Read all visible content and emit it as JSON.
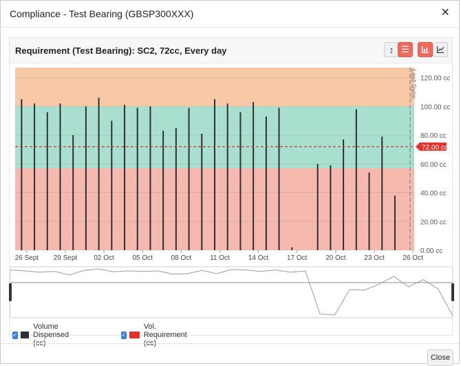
{
  "modal": {
    "title": "Compliance - Test Bearing (GBSP300XXX)",
    "close_icon": "×",
    "footer_close_label": "Close"
  },
  "card": {
    "title": "Requirement (Test Bearing): SC2, 72cc, Every day",
    "toolbar": {
      "vertical_resize_icon": "↕",
      "bars_icon": "☰",
      "bar_chart_icon": "bar-chart-icon",
      "line_chart_icon": "line-chart-icon"
    }
  },
  "legend": [
    {
      "label": "Volume Dispensed (cc)",
      "color": "#2b2f36",
      "checked": true
    },
    {
      "label": "Vol. Requirement (cc)",
      "color": "#e8302a",
      "checked": true
    }
  ],
  "chart_data": {
    "type": "bar",
    "x_tick_labels": [
      "26 Sept",
      "29 Sept",
      "02 Oct",
      "05 Oct",
      "08 Oct",
      "11 Oct",
      "14 Oct",
      "17 Oct",
      "20 Oct",
      "23 Oct",
      "26 Oct"
    ],
    "y_ticks": [
      "0.00 cc",
      "20.00 cc",
      "40.00 cc",
      "60.00 cc",
      "80.00 cc",
      "100.00 cc",
      "120.00 cc"
    ],
    "ylim": [
      0,
      127
    ],
    "bands": [
      {
        "from": 100,
        "to": 127,
        "color": "#f7c9a6"
      },
      {
        "from": 57,
        "to": 100,
        "color": "#a9dfcf"
      },
      {
        "from": 0,
        "to": 57,
        "color": "#f6b9ad"
      }
    ],
    "requirement": {
      "value": 72,
      "label": "72.00 cc",
      "color": "#cc3a30"
    },
    "marker_label": "Last Sync",
    "series": [
      {
        "name": "Volume Dispensed (cc)",
        "points": [
          {
            "day": 0.5,
            "value": 105
          },
          {
            "day": 1.5,
            "value": 102
          },
          {
            "day": 2.5,
            "value": 96
          },
          {
            "day": 3.5,
            "value": 102
          },
          {
            "day": 4.5,
            "value": 80
          },
          {
            "day": 5.5,
            "value": 100
          },
          {
            "day": 6.5,
            "value": 106
          },
          {
            "day": 7.5,
            "value": 90
          },
          {
            "day": 8.5,
            "value": 101
          },
          {
            "day": 9.5,
            "value": 99
          },
          {
            "day": 10.5,
            "value": 100
          },
          {
            "day": 11.5,
            "value": 83
          },
          {
            "day": 12.5,
            "value": 85
          },
          {
            "day": 13.5,
            "value": 99
          },
          {
            "day": 14.5,
            "value": 81
          },
          {
            "day": 15.5,
            "value": 105
          },
          {
            "day": 16.5,
            "value": 102
          },
          {
            "day": 17.5,
            "value": 96
          },
          {
            "day": 18.5,
            "value": 103
          },
          {
            "day": 19.5,
            "value": 93
          },
          {
            "day": 20.5,
            "value": 99
          },
          {
            "day": 21.5,
            "value": 2
          },
          {
            "day": 23.5,
            "value": 60
          },
          {
            "day": 24.5,
            "value": 59
          },
          {
            "day": 25.5,
            "value": 77
          },
          {
            "day": 26.5,
            "value": 98
          },
          {
            "day": 27.5,
            "value": 54
          },
          {
            "day": 28.5,
            "value": 79
          },
          {
            "day": 29.5,
            "value": 38
          }
        ]
      }
    ],
    "navigator_values": [
      101,
      99,
      96,
      98,
      90,
      100,
      103,
      97,
      99,
      98,
      99,
      92,
      93,
      100,
      93,
      102,
      101,
      98,
      101,
      96,
      99,
      5,
      3,
      58,
      57,
      70,
      87,
      64,
      80,
      60,
      1
    ]
  }
}
